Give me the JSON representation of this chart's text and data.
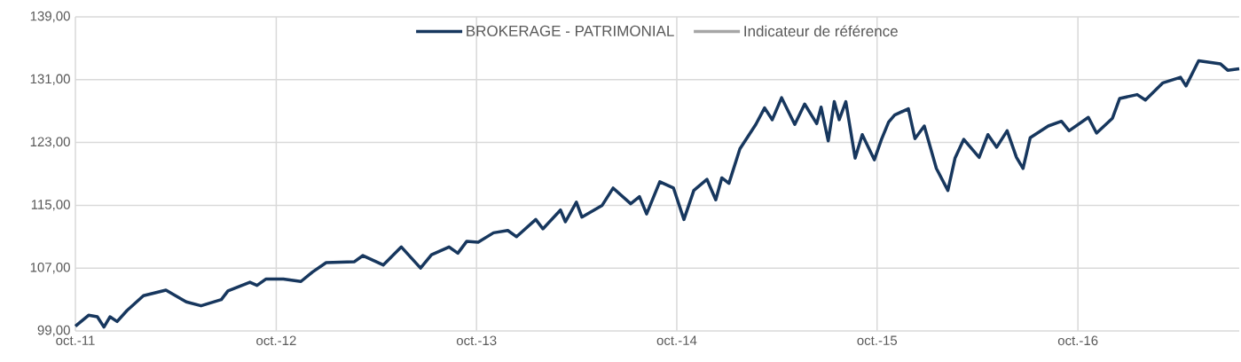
{
  "chart_data": {
    "type": "line",
    "x": [
      "2011-10-01",
      "2011-10-25",
      "2011-11-10",
      "2011-11-22",
      "2011-12-03",
      "2011-12-16",
      "2012-01-03",
      "2012-02-02",
      "2012-03-14",
      "2012-04-20",
      "2012-05-17",
      "2012-06-23",
      "2012-07-05",
      "2012-08-14",
      "2012-08-27",
      "2012-09-12",
      "2012-10-14",
      "2012-11-15",
      "2012-12-06",
      "2012-12-31",
      "2013-02-20",
      "2013-03-08",
      "2013-04-14",
      "2013-05-17",
      "2013-06-21",
      "2013-07-11",
      "2013-08-12",
      "2013-08-28",
      "2013-09-13",
      "2013-10-04",
      "2013-11-01",
      "2013-11-27",
      "2013-12-13",
      "2014-01-17",
      "2014-01-30",
      "2014-03-03",
      "2014-03-12",
      "2014-04-01",
      "2014-04-11",
      "2014-05-18",
      "2014-06-07",
      "2014-07-09",
      "2014-07-25",
      "2014-08-07",
      "2014-08-31",
      "2014-09-25",
      "2014-10-14",
      "2014-11-01",
      "2014-11-25",
      "2014-12-11",
      "2014-12-22",
      "2015-01-04",
      "2015-01-24",
      "2015-02-22",
      "2015-03-10",
      "2015-03-24",
      "2015-04-10",
      "2015-05-04",
      "2015-05-22",
      "2015-06-13",
      "2015-06-21",
      "2015-07-04",
      "2015-07-15",
      "2015-07-24",
      "2015-08-05",
      "2015-08-22",
      "2015-09-04",
      "2015-09-26",
      "2015-10-09",
      "2015-10-22",
      "2015-11-02",
      "2015-11-27",
      "2015-12-09",
      "2015-12-26",
      "2016-01-17",
      "2016-02-07",
      "2016-02-20",
      "2016-03-07",
      "2016-04-04",
      "2016-04-20",
      "2016-05-06",
      "2016-05-25",
      "2016-06-11",
      "2016-06-23",
      "2016-07-06",
      "2016-08-08",
      "2016-09-01",
      "2016-09-15",
      "2016-10-20",
      "2016-11-04",
      "2016-12-03",
      "2016-12-16",
      "2017-01-17",
      "2017-02-01",
      "2017-03-05",
      "2017-04-06",
      "2017-04-16",
      "2017-05-09",
      "2017-06-18",
      "2017-07-01",
      "2017-07-22"
    ],
    "series": [
      {
        "name": "BROKERAGE - PATRIMONIAL",
        "color": "#17375e",
        "values": [
          99.6,
          101.0,
          100.8,
          99.5,
          100.8,
          100.2,
          101.6,
          103.5,
          104.2,
          102.7,
          102.2,
          103.0,
          104.1,
          105.2,
          104.8,
          105.6,
          105.6,
          105.3,
          106.5,
          107.7,
          107.8,
          108.6,
          107.4,
          109.7,
          107.0,
          108.7,
          109.7,
          108.9,
          110.4,
          110.3,
          111.5,
          111.8,
          111.0,
          113.2,
          112.0,
          114.4,
          112.9,
          115.4,
          113.5,
          115.0,
          117.2,
          115.2,
          116.1,
          113.9,
          118.0,
          117.2,
          113.2,
          116.9,
          118.3,
          115.7,
          118.5,
          117.8,
          122.2,
          125.3,
          127.4,
          125.9,
          128.7,
          125.3,
          127.9,
          125.4,
          127.5,
          123.2,
          128.2,
          125.9,
          128.2,
          121.0,
          124.0,
          120.8,
          123.4,
          125.6,
          126.5,
          127.3,
          123.5,
          125.1,
          119.7,
          116.9,
          121.0,
          123.4,
          121.1,
          124.0,
          122.4,
          124.5,
          121.1,
          119.7,
          123.6,
          125.1,
          125.7,
          124.5,
          126.2,
          124.2,
          126.1,
          128.6,
          129.1,
          128.4,
          130.6,
          131.3,
          130.2,
          133.4,
          133.0,
          132.2,
          132.4
        ]
      },
      {
        "name": "Indicateur de référence",
        "color": "#a6a6a6",
        "values": [
          null,
          null,
          null,
          null,
          null,
          null,
          null,
          null,
          null,
          null,
          null,
          null,
          null,
          null,
          null,
          null,
          null,
          null,
          null,
          null,
          null,
          null,
          null,
          null,
          null,
          null,
          null,
          null,
          null,
          null,
          null,
          null,
          null,
          null,
          null,
          null,
          null,
          null,
          null,
          null,
          null,
          null,
          null,
          null,
          null,
          null,
          null,
          null,
          null,
          null,
          null,
          null,
          null,
          null,
          null,
          null,
          null,
          null,
          null,
          null,
          null,
          null,
          null,
          null,
          null,
          null,
          null,
          null,
          null,
          null,
          null,
          null,
          null,
          null,
          null,
          null,
          null,
          null,
          null,
          null,
          null,
          null,
          null,
          null,
          null,
          null,
          null,
          null,
          null,
          null,
          null,
          null,
          null,
          null,
          null,
          null,
          null,
          null,
          null,
          null,
          null
        ]
      }
    ],
    "xlim": [
      "2011-10-01",
      "2017-07-22"
    ],
    "xticks": [
      {
        "value": "2011-10-01",
        "label": "oct.-11"
      },
      {
        "value": "2012-10-01",
        "label": "oct.-12"
      },
      {
        "value": "2013-10-01",
        "label": "oct.-13"
      },
      {
        "value": "2014-10-01",
        "label": "oct.-14"
      },
      {
        "value": "2015-10-01",
        "label": "oct.-15"
      },
      {
        "value": "2016-10-01",
        "label": "oct.-16"
      }
    ],
    "ylim": [
      99,
      139
    ],
    "yticks": [
      {
        "value": 99,
        "label": "99,00"
      },
      {
        "value": 107,
        "label": "107,00"
      },
      {
        "value": 115,
        "label": "115,00"
      },
      {
        "value": 123,
        "label": "123,00"
      },
      {
        "value": 131,
        "label": "131,00"
      },
      {
        "value": 139,
        "label": "139,00"
      }
    ],
    "grid": true,
    "legend": "top",
    "marker": "none",
    "line_style": "solid"
  }
}
